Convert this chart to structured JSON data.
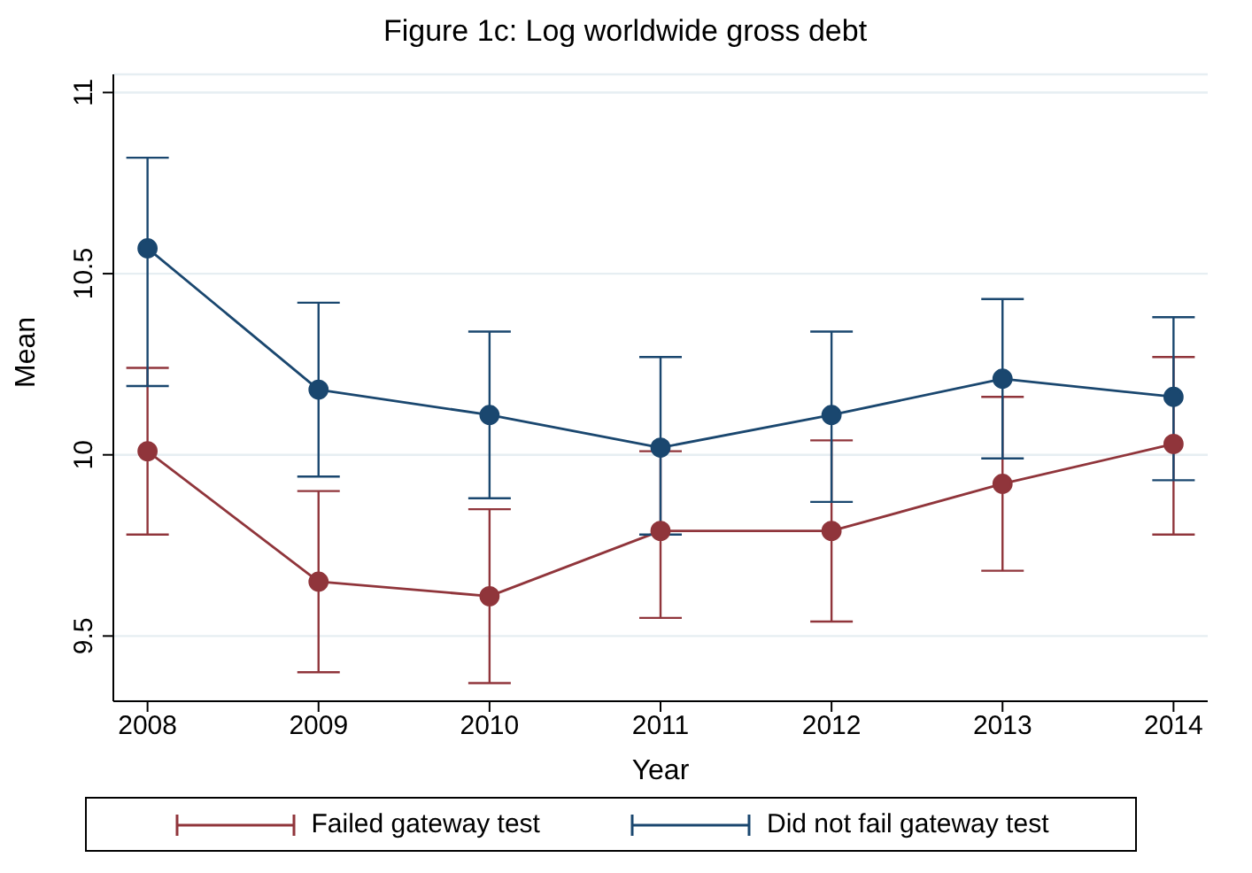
{
  "chart_data": {
    "type": "line",
    "title": "Figure 1c: Log worldwide gross debt",
    "xlabel": "Year",
    "ylabel": "Mean",
    "x": [
      2008,
      2009,
      2010,
      2011,
      2012,
      2013,
      2014
    ],
    "series": [
      {
        "name": "Failed gateway test",
        "color": "#90353b",
        "values": [
          10.01,
          9.65,
          9.61,
          9.79,
          9.79,
          9.92,
          10.03
        ],
        "errors": [
          [
            9.78,
            10.24
          ],
          [
            9.4,
            9.9
          ],
          [
            9.37,
            9.85
          ],
          [
            9.55,
            10.01
          ],
          [
            9.54,
            10.04
          ],
          [
            9.68,
            10.16
          ],
          [
            9.78,
            10.27
          ]
        ]
      },
      {
        "name": "Did not fail gateway test",
        "color": "#1a476f",
        "values": [
          10.57,
          10.18,
          10.11,
          10.02,
          10.11,
          10.21,
          10.16
        ],
        "errors": [
          [
            10.19,
            10.82
          ],
          [
            9.94,
            10.42
          ],
          [
            9.88,
            10.34
          ],
          [
            9.78,
            10.27
          ],
          [
            9.87,
            10.34
          ],
          [
            9.99,
            10.43
          ],
          [
            9.93,
            10.38
          ]
        ]
      }
    ],
    "xlim": [
      2007.8,
      2014.2
    ],
    "xticks": [
      2008,
      2009,
      2010,
      2011,
      2012,
      2013,
      2014
    ],
    "ylim": [
      9.32,
      11.05
    ],
    "yticks": [
      9.5,
      10,
      10.5,
      11
    ],
    "grid": "y",
    "legend": "bottom",
    "marker": "circle",
    "line_style": "solid"
  }
}
